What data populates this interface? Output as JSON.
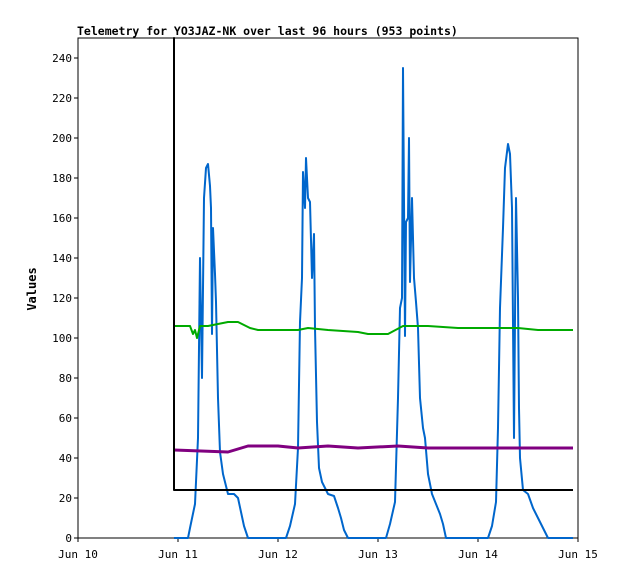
{
  "chart_data": {
    "type": "line",
    "title": "Telemetry for YO3JAZ-NK over last 96 hours (953 points)",
    "xlabel": "",
    "ylabel": "Values",
    "xlim": [
      "Jun 10",
      "Jun 15"
    ],
    "ylim": [
      0,
      250
    ],
    "x_ticks": [
      "Jun 10",
      "Jun 11",
      "Jun 12",
      "Jun 13",
      "Jun 14",
      "Jun 15"
    ],
    "y_ticks": [
      0,
      20,
      40,
      60,
      80,
      100,
      120,
      140,
      160,
      180,
      200,
      220,
      240
    ],
    "grid": false,
    "legend": "none",
    "x_unit": "days after Jun 10",
    "series": [
      {
        "color": "#0066cc",
        "points": [
          [
            0.96,
            0
          ],
          [
            1.1,
            0
          ],
          [
            1.12,
            5
          ],
          [
            1.17,
            17
          ],
          [
            1.2,
            50
          ],
          [
            1.22,
            140
          ],
          [
            1.24,
            80
          ],
          [
            1.26,
            170
          ],
          [
            1.28,
            185
          ],
          [
            1.3,
            187
          ],
          [
            1.32,
            176
          ],
          [
            1.33,
            165
          ],
          [
            1.34,
            102
          ],
          [
            1.35,
            155
          ],
          [
            1.37,
            132
          ],
          [
            1.38,
            118
          ],
          [
            1.4,
            70
          ],
          [
            1.42,
            43
          ],
          [
            1.45,
            32
          ],
          [
            1.5,
            22
          ],
          [
            1.56,
            22
          ],
          [
            1.6,
            20
          ],
          [
            1.63,
            13
          ],
          [
            1.66,
            6
          ],
          [
            1.7,
            0
          ],
          [
            2.0,
            0
          ],
          [
            2.08,
            0
          ],
          [
            2.12,
            6
          ],
          [
            2.17,
            17
          ],
          [
            2.2,
            45
          ],
          [
            2.22,
            108
          ],
          [
            2.24,
            130
          ],
          [
            2.25,
            183
          ],
          [
            2.27,
            165
          ],
          [
            2.28,
            190
          ],
          [
            2.3,
            170
          ],
          [
            2.32,
            168
          ],
          [
            2.34,
            130
          ],
          [
            2.36,
            152
          ],
          [
            2.37,
            105
          ],
          [
            2.39,
            58
          ],
          [
            2.41,
            35
          ],
          [
            2.44,
            28
          ],
          [
            2.5,
            22
          ],
          [
            2.56,
            21
          ],
          [
            2.6,
            15
          ],
          [
            2.63,
            10
          ],
          [
            2.66,
            4
          ],
          [
            2.7,
            0
          ],
          [
            2.99,
            0
          ],
          [
            3.08,
            0
          ],
          [
            3.12,
            7
          ],
          [
            3.17,
            18
          ],
          [
            3.2,
            70
          ],
          [
            3.22,
            115
          ],
          [
            3.24,
            120
          ],
          [
            3.25,
            235
          ],
          [
            3.27,
            101
          ],
          [
            3.28,
            158
          ],
          [
            3.3,
            160
          ],
          [
            3.31,
            200
          ],
          [
            3.32,
            128
          ],
          [
            3.34,
            170
          ],
          [
            3.36,
            130
          ],
          [
            3.38,
            118
          ],
          [
            3.4,
            105
          ],
          [
            3.42,
            70
          ],
          [
            3.45,
            55
          ],
          [
            3.47,
            50
          ],
          [
            3.5,
            32
          ],
          [
            3.54,
            22
          ],
          [
            3.58,
            17
          ],
          [
            3.62,
            12
          ],
          [
            3.65,
            7
          ],
          [
            3.68,
            0
          ],
          [
            4.02,
            0
          ],
          [
            4.1,
            0
          ],
          [
            4.14,
            6
          ],
          [
            4.18,
            18
          ],
          [
            4.2,
            55
          ],
          [
            4.22,
            115
          ],
          [
            4.25,
            155
          ],
          [
            4.27,
            185
          ],
          [
            4.3,
            197
          ],
          [
            4.32,
            192
          ],
          [
            4.34,
            165
          ],
          [
            4.36,
            50
          ],
          [
            4.38,
            170
          ],
          [
            4.4,
            120
          ],
          [
            4.41,
            65
          ],
          [
            4.42,
            40
          ],
          [
            4.45,
            24
          ],
          [
            4.5,
            22
          ],
          [
            4.55,
            15
          ],
          [
            4.6,
            10
          ],
          [
            4.65,
            5
          ],
          [
            4.7,
            0
          ],
          [
            4.95,
            0
          ]
        ]
      },
      {
        "color": "#00aa00",
        "points": [
          [
            0.96,
            106
          ],
          [
            1.12,
            106
          ],
          [
            1.15,
            102
          ],
          [
            1.17,
            104
          ],
          [
            1.19,
            100
          ],
          [
            1.22,
            106
          ],
          [
            1.3,
            106
          ],
          [
            1.4,
            107
          ],
          [
            1.5,
            108
          ],
          [
            1.6,
            108
          ],
          [
            1.72,
            105
          ],
          [
            1.8,
            104
          ],
          [
            1.95,
            104
          ],
          [
            2.2,
            104
          ],
          [
            2.3,
            105
          ],
          [
            2.5,
            104
          ],
          [
            2.8,
            103
          ],
          [
            2.9,
            102
          ],
          [
            3.1,
            102
          ],
          [
            3.25,
            106
          ],
          [
            3.5,
            106
          ],
          [
            3.8,
            105
          ],
          [
            4.0,
            105
          ],
          [
            4.2,
            105
          ],
          [
            4.4,
            105
          ],
          [
            4.6,
            104
          ],
          [
            4.8,
            104
          ],
          [
            4.95,
            104
          ]
        ]
      },
      {
        "color": "#800080",
        "points": [
          [
            0.96,
            44
          ],
          [
            1.5,
            43
          ],
          [
            1.7,
            46
          ],
          [
            2.0,
            46
          ],
          [
            2.2,
            45
          ],
          [
            2.5,
            46
          ],
          [
            2.8,
            45
          ],
          [
            3.2,
            46
          ],
          [
            3.5,
            45
          ],
          [
            3.8,
            45
          ],
          [
            4.1,
            45
          ],
          [
            4.4,
            45
          ],
          [
            4.7,
            45
          ],
          [
            4.95,
            45
          ]
        ]
      },
      {
        "color": "#000000",
        "points": [
          [
            0.96,
            136
          ],
          [
            0.96,
            250
          ],
          [
            0.96,
            24
          ],
          [
            1.5,
            24
          ],
          [
            2.0,
            24
          ],
          [
            2.5,
            24
          ],
          [
            3.0,
            24
          ],
          [
            3.5,
            24
          ],
          [
            4.0,
            24
          ],
          [
            4.5,
            24
          ],
          [
            4.95,
            24
          ]
        ]
      }
    ]
  }
}
